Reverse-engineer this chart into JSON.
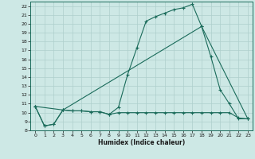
{
  "title": "",
  "xlabel": "Humidex (Indice chaleur)",
  "bg_color": "#cde8e5",
  "grid_color": "#aecfcc",
  "line_color": "#1a6b5a",
  "xlim": [
    -0.5,
    23.5
  ],
  "ylim": [
    8,
    22.5
  ],
  "xticks": [
    0,
    1,
    2,
    3,
    4,
    5,
    6,
    7,
    8,
    9,
    10,
    11,
    12,
    13,
    14,
    15,
    16,
    17,
    18,
    19,
    20,
    21,
    22,
    23
  ],
  "yticks": [
    8,
    9,
    10,
    11,
    12,
    13,
    14,
    15,
    16,
    17,
    18,
    19,
    20,
    21,
    22
  ],
  "line1_x": [
    0,
    1,
    2,
    3,
    4,
    5,
    6,
    7,
    8,
    9,
    10,
    11,
    12,
    13,
    14,
    15,
    16,
    17,
    18,
    19,
    20,
    21,
    22,
    23
  ],
  "line1_y": [
    10.7,
    8.5,
    8.7,
    10.3,
    10.2,
    10.2,
    10.1,
    10.1,
    9.8,
    10.6,
    14.3,
    17.3,
    20.3,
    20.8,
    21.2,
    21.6,
    21.8,
    22.2,
    19.7,
    16.3,
    12.6,
    11.0,
    9.3,
    9.3
  ],
  "line2_x": [
    0,
    1,
    2,
    3,
    4,
    5,
    6,
    7,
    8,
    9,
    10,
    11,
    12,
    13,
    14,
    15,
    16,
    17,
    18,
    19,
    20,
    21,
    22,
    23
  ],
  "line2_y": [
    10.7,
    8.5,
    8.7,
    10.3,
    10.2,
    10.2,
    10.1,
    10.1,
    9.8,
    10.0,
    10.0,
    10.0,
    10.0,
    10.0,
    10.0,
    10.0,
    10.0,
    10.0,
    10.0,
    10.0,
    10.0,
    10.0,
    9.4,
    9.3
  ],
  "line3_x": [
    0,
    3,
    18,
    23
  ],
  "line3_y": [
    10.7,
    10.3,
    19.7,
    9.3
  ]
}
